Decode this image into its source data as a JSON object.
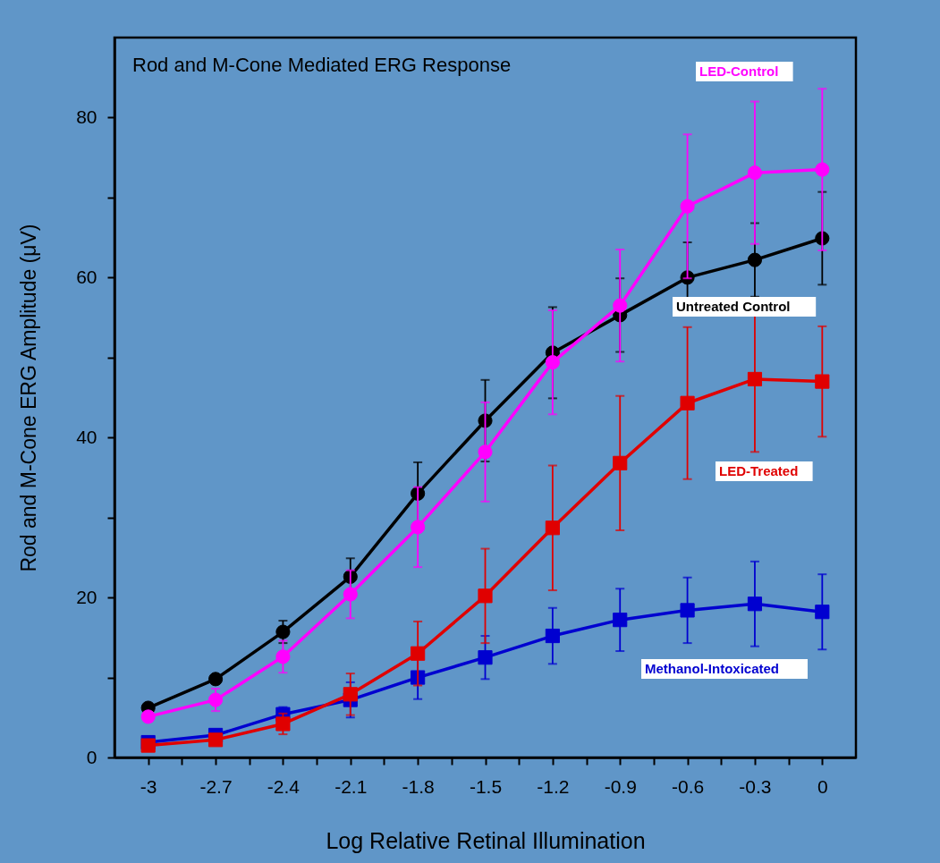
{
  "chart_data": {
    "type": "line",
    "title": "Rod and M-Cone Mediated ERG Response",
    "xlabel": "Log Relative Retinal Illumination",
    "ylabel": "Rod and M-Cone ERG Amplitude (μV)",
    "x": [
      -3,
      -2.7,
      -2.4,
      -2.1,
      -1.8,
      -1.5,
      -1.2,
      -0.9,
      -0.6,
      -0.3,
      0
    ],
    "xlim": [
      -3.15,
      0.15
    ],
    "xticks": [
      -3,
      {
        "value": -2.85,
        "label": null
      },
      -2.7,
      {
        "value": -2.55,
        "label": null
      },
      -2.4,
      {
        "value": -2.25,
        "label": null
      },
      -2.1,
      {
        "value": -1.95,
        "label": null
      },
      -1.8,
      {
        "value": -1.65,
        "label": null
      },
      -1.5,
      {
        "value": -1.35,
        "label": null
      },
      -1.2,
      {
        "value": -1.05,
        "label": null
      },
      -0.9,
      {
        "value": -0.75,
        "label": null
      },
      -0.6,
      {
        "value": -0.45,
        "label": null
      },
      -0.3,
      {
        "value": -0.15,
        "label": null
      },
      0
    ],
    "ylim": [
      0,
      90
    ],
    "yticks": [
      0,
      {
        "value": 10,
        "label": null
      },
      20,
      {
        "value": 30,
        "label": null
      },
      40,
      {
        "value": 50,
        "label": null
      },
      60,
      {
        "value": 70,
        "label": null
      },
      80
    ],
    "grid": false,
    "legend": false,
    "line_style": "solid",
    "series": [
      {
        "name": "LED-Control",
        "color": "#ff00ff",
        "marker": "circle",
        "values": [
          5.1,
          7.2,
          12.6,
          20.4,
          28.8,
          38.2,
          49.4,
          56.5,
          68.9,
          73.1,
          73.5
        ],
        "errors": [
          0.6,
          1.4,
          2,
          3,
          5,
          6.2,
          6.5,
          7,
          9,
          8.9,
          10.1
        ]
      },
      {
        "name": "Untreated Control",
        "color": "#000000",
        "marker": "circle",
        "values": [
          6.2,
          9.8,
          15.7,
          22.6,
          33.0,
          42.1,
          50.6,
          55.3,
          60.0,
          62.2,
          64.9
        ],
        "errors": [
          0.3,
          0.5,
          1.4,
          2.3,
          3.9,
          5.1,
          5.7,
          4.6,
          4.4,
          4.6,
          5.8
        ]
      },
      {
        "name": "LED-Treated",
        "color": "#e00000",
        "marker": "square",
        "values": [
          1.5,
          2.2,
          4.2,
          7.9,
          13.0,
          20.2,
          28.7,
          36.8,
          44.3,
          47.3,
          47.0
        ],
        "errors": [
          0.3,
          0.5,
          1.3,
          2.6,
          4,
          5.9,
          7.8,
          8.4,
          9.5,
          9.1,
          6.9
        ]
      },
      {
        "name": "Methanol-Intoxicated",
        "color": "#0000d0",
        "marker": "square",
        "values": [
          1.9,
          2.8,
          5.4,
          7.2,
          10.0,
          12.5,
          15.2,
          17.2,
          18.4,
          19.2,
          18.2
        ],
        "errors": [
          0.3,
          0.5,
          0.9,
          2.2,
          2.7,
          2.7,
          3.5,
          3.9,
          4.1,
          5.3,
          4.7
        ]
      }
    ]
  }
}
